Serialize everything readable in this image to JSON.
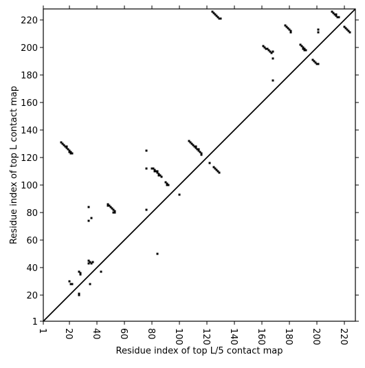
{
  "chart_data": {
    "type": "scatter",
    "xlabel": "Residue index of top L/5 contact map",
    "ylabel": "Residue index of top L contact map",
    "xlim": [
      1,
      228
    ],
    "ylim": [
      1,
      228
    ],
    "xticks": [
      1,
      20,
      40,
      60,
      80,
      100,
      120,
      140,
      160,
      180,
      200,
      220
    ],
    "yticks": [
      1,
      20,
      40,
      60,
      80,
      100,
      120,
      140,
      160,
      180,
      200,
      220
    ],
    "color": "#000000",
    "x": [
      14,
      15,
      16,
      17,
      18,
      19,
      20,
      21,
      22,
      18,
      20,
      21,
      48,
      49,
      50,
      51,
      52,
      53,
      53,
      52,
      48,
      34,
      34,
      36,
      43,
      34,
      35,
      36,
      34,
      37,
      35,
      20,
      21,
      22,
      27,
      28,
      28,
      27,
      27,
      76,
      76,
      76,
      84,
      100,
      80,
      81,
      82,
      83,
      84,
      85,
      86,
      87,
      82,
      84,
      85,
      90,
      91,
      92,
      91,
      107,
      108,
      109,
      110,
      111,
      112,
      113,
      114,
      115,
      116,
      116,
      112,
      114,
      122,
      125,
      126,
      127,
      128,
      129,
      124,
      125,
      126,
      127,
      128,
      129,
      130,
      161,
      162,
      163,
      164,
      165,
      166,
      167,
      168,
      168,
      168,
      177,
      178,
      179,
      180,
      181,
      181,
      188,
      189,
      190,
      191,
      192,
      190,
      191,
      197,
      198,
      199,
      200,
      201,
      201,
      201,
      211,
      212,
      213,
      214,
      215,
      216,
      214,
      220,
      221,
      222,
      223,
      224
    ],
    "values": [
      131,
      130,
      129,
      128,
      127,
      126,
      125,
      124,
      123,
      128,
      124,
      123,
      86,
      85,
      84,
      83,
      82,
      81,
      80,
      80,
      85,
      84,
      74,
      76,
      37,
      45,
      44,
      43,
      43,
      44,
      28,
      30,
      28,
      28,
      37,
      36,
      35,
      21,
      20,
      125,
      112,
      82,
      50,
      93,
      112,
      112,
      111,
      110,
      109,
      108,
      107,
      106,
      110,
      110,
      107,
      102,
      101,
      100,
      100,
      132,
      131,
      130,
      129,
      128,
      127,
      126,
      125,
      124,
      123,
      122,
      128,
      126,
      116,
      113,
      112,
      111,
      110,
      109,
      226,
      225,
      224,
      223,
      222,
      221,
      221,
      201,
      200,
      199,
      199,
      198,
      197,
      196,
      197,
      192,
      176,
      216,
      215,
      214,
      213,
      212,
      211,
      202,
      201,
      200,
      199,
      198,
      199,
      198,
      191,
      190,
      189,
      188,
      188,
      213,
      211,
      226,
      225,
      224,
      223,
      222,
      222,
      224,
      215,
      214,
      213,
      212,
      211
    ]
  }
}
